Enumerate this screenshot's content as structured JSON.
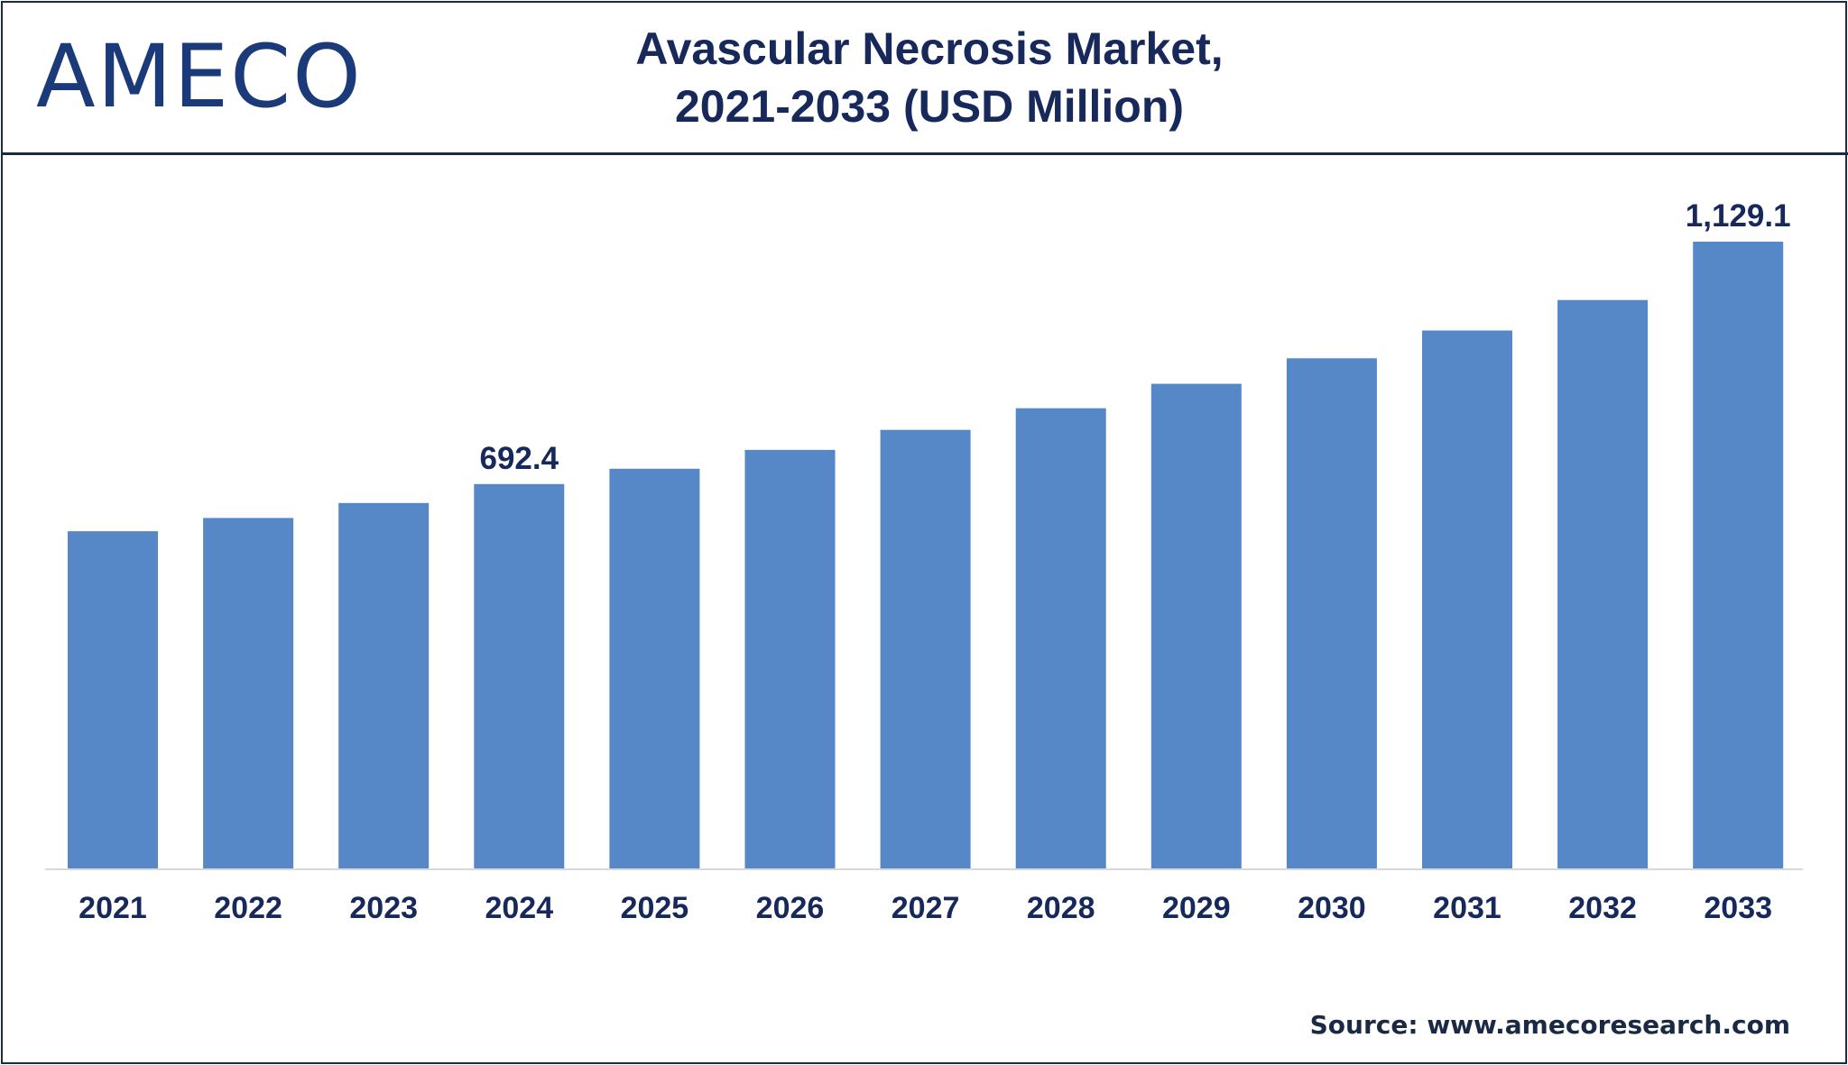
{
  "brand": {
    "logo_text": "AMECO"
  },
  "title": {
    "line1": "Avascular Necrosis Market,",
    "line2": "2021-2033 (USD Million)"
  },
  "source": "Source: www.amecoresearch.com",
  "colors": {
    "bar": "#5687c6",
    "text": "#17285a",
    "frame": "#1b2a44",
    "axis": "#d9d9d9"
  },
  "chart_data": {
    "type": "bar",
    "title": "Avascular Necrosis Market, 2021-2033 (USD Million)",
    "xlabel": "",
    "ylabel": "",
    "categories": [
      "2021",
      "2022",
      "2023",
      "2024",
      "2025",
      "2026",
      "2027",
      "2028",
      "2029",
      "2030",
      "2031",
      "2032",
      "2033"
    ],
    "series": [
      {
        "values": [
          607.4,
          631.4,
          658.3,
          692.4,
          720.0,
          754.0,
          790.0,
          829.0,
          873.0,
          919.0,
          969.0,
          1024.0,
          1129.1
        ]
      }
    ],
    "data_labels": [
      {
        "category": "2024",
        "text": "692.4"
      },
      {
        "category": "2033",
        "text": "1,129.1"
      }
    ],
    "ylim": [
      0,
      1129.1
    ],
    "grid": false,
    "legend": "none"
  }
}
